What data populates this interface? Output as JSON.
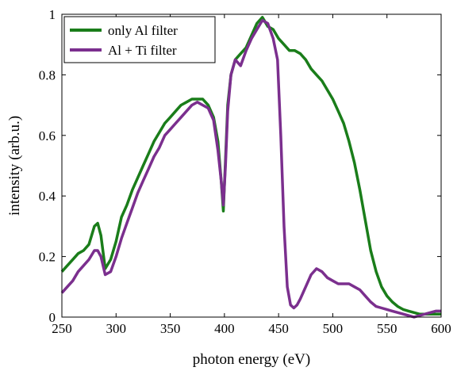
{
  "chart_data": {
    "type": "line",
    "title": "",
    "xlabel": "photon energy (eV)",
    "ylabel": "intensity (arb.u.)",
    "xlim": [
      250,
      600
    ],
    "ylim": [
      0,
      1
    ],
    "xticks": [
      250,
      300,
      350,
      400,
      450,
      500,
      550,
      600
    ],
    "xtick_labels": [
      "250",
      "300",
      "350",
      "400",
      "450",
      "500",
      "550",
      "600"
    ],
    "yticks": [
      0,
      0.2,
      0.4,
      0.6,
      0.8,
      1
    ],
    "ytick_labels": [
      "0",
      "0.2",
      "0.4",
      "0.6",
      "0.8",
      "1"
    ],
    "grid": false,
    "legend_position": "top-left",
    "series": [
      {
        "name": "only Al filter",
        "color": "#1a7d1a",
        "x": [
          250,
          255,
          260,
          265,
          270,
          275,
          280,
          283,
          286,
          290,
          295,
          300,
          305,
          310,
          315,
          320,
          325,
          330,
          335,
          340,
          345,
          350,
          355,
          360,
          365,
          370,
          375,
          380,
          385,
          390,
          394,
          397,
          399,
          401,
          403,
          406,
          410,
          415,
          420,
          425,
          430,
          435,
          440,
          445,
          450,
          455,
          460,
          465,
          470,
          475,
          480,
          485,
          490,
          495,
          500,
          505,
          510,
          515,
          520,
          525,
          530,
          535,
          540,
          545,
          550,
          555,
          560,
          565,
          570,
          575,
          580,
          585,
          590,
          595,
          600
        ],
        "y": [
          0.15,
          0.17,
          0.19,
          0.21,
          0.22,
          0.24,
          0.3,
          0.31,
          0.27,
          0.16,
          0.19,
          0.25,
          0.33,
          0.37,
          0.42,
          0.46,
          0.5,
          0.54,
          0.58,
          0.61,
          0.64,
          0.66,
          0.68,
          0.7,
          0.71,
          0.72,
          0.72,
          0.72,
          0.7,
          0.66,
          0.58,
          0.45,
          0.35,
          0.52,
          0.7,
          0.8,
          0.85,
          0.87,
          0.89,
          0.93,
          0.97,
          0.99,
          0.96,
          0.95,
          0.92,
          0.9,
          0.88,
          0.88,
          0.87,
          0.85,
          0.82,
          0.8,
          0.78,
          0.75,
          0.72,
          0.68,
          0.64,
          0.58,
          0.51,
          0.42,
          0.32,
          0.22,
          0.15,
          0.1,
          0.07,
          0.05,
          0.035,
          0.025,
          0.02,
          0.015,
          0.01,
          0.01,
          0.01,
          0.01,
          0.01
        ]
      },
      {
        "name": "Al + Ti filter",
        "color": "#7b2f8e",
        "x": [
          250,
          255,
          260,
          265,
          270,
          275,
          280,
          283,
          286,
          290,
          295,
          300,
          305,
          310,
          315,
          320,
          325,
          330,
          335,
          340,
          345,
          350,
          355,
          360,
          365,
          370,
          375,
          380,
          385,
          390,
          394,
          397,
          399,
          401,
          403,
          406,
          410,
          415,
          420,
          425,
          430,
          435,
          440,
          445,
          449,
          452,
          455,
          458,
          461,
          464,
          467,
          470,
          475,
          480,
          485,
          490,
          495,
          500,
          505,
          510,
          515,
          520,
          525,
          530,
          535,
          540,
          545,
          550,
          555,
          560,
          565,
          570,
          575,
          580,
          585,
          590,
          595,
          600
        ],
        "y": [
          0.08,
          0.1,
          0.12,
          0.15,
          0.17,
          0.19,
          0.22,
          0.22,
          0.2,
          0.14,
          0.15,
          0.2,
          0.26,
          0.31,
          0.36,
          0.41,
          0.45,
          0.49,
          0.53,
          0.56,
          0.6,
          0.62,
          0.64,
          0.66,
          0.68,
          0.7,
          0.71,
          0.7,
          0.69,
          0.65,
          0.55,
          0.45,
          0.37,
          0.5,
          0.68,
          0.8,
          0.85,
          0.83,
          0.88,
          0.92,
          0.95,
          0.98,
          0.97,
          0.92,
          0.85,
          0.6,
          0.3,
          0.1,
          0.04,
          0.03,
          0.04,
          0.06,
          0.1,
          0.14,
          0.16,
          0.15,
          0.13,
          0.12,
          0.11,
          0.11,
          0.11,
          0.1,
          0.09,
          0.07,
          0.05,
          0.035,
          0.03,
          0.025,
          0.02,
          0.015,
          0.01,
          0.005,
          0.0,
          0.005,
          0.01,
          0.015,
          0.02,
          0.02
        ]
      }
    ]
  }
}
